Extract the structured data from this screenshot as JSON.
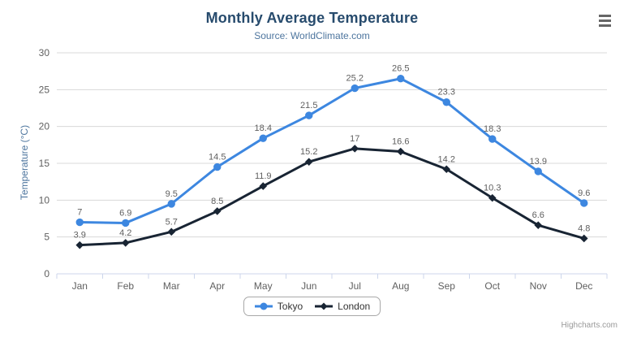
{
  "header": {
    "title": "Monthly Average Temperature",
    "subtitle": "Source: WorldClimate.com"
  },
  "chart_data": {
    "type": "line",
    "categories": [
      "Jan",
      "Feb",
      "Mar",
      "Apr",
      "May",
      "Jun",
      "Jul",
      "Aug",
      "Sep",
      "Oct",
      "Nov",
      "Dec"
    ],
    "series": [
      {
        "name": "Tokyo",
        "marker": "circle",
        "color": "#3d87e0",
        "values": [
          7,
          6.9,
          9.5,
          14.5,
          18.4,
          21.5,
          25.2,
          26.5,
          23.3,
          18.3,
          13.9,
          9.6
        ]
      },
      {
        "name": "London",
        "marker": "diamond",
        "color": "#182433",
        "values": [
          3.9,
          4.2,
          5.7,
          8.5,
          11.9,
          15.2,
          17,
          16.6,
          14.2,
          10.3,
          6.6,
          4.8
        ]
      }
    ],
    "title": "Monthly Average Temperature",
    "subtitle": "Source: WorldClimate.com",
    "xlabel": "",
    "ylabel": "Temperature (°C)",
    "ylim": [
      0,
      30
    ],
    "y_ticks": [
      0,
      5,
      10,
      15,
      20,
      25,
      30
    ],
    "grid": true,
    "data_labels": true,
    "legend_position": "bottom"
  },
  "colors": {
    "title": "#274b6d",
    "subtitle": "#4d759e",
    "axis_title": "#4d759e",
    "axis_label": "#606060",
    "data_label": "#606060",
    "gridline": "#d8d8d8",
    "axis_line": "#ccd6eb",
    "legend_text": "#333333",
    "legend_border": "#a8a8a8",
    "credits": "#999999",
    "menu_icon": "#666666"
  },
  "credits": {
    "label": "Highcharts.com"
  }
}
